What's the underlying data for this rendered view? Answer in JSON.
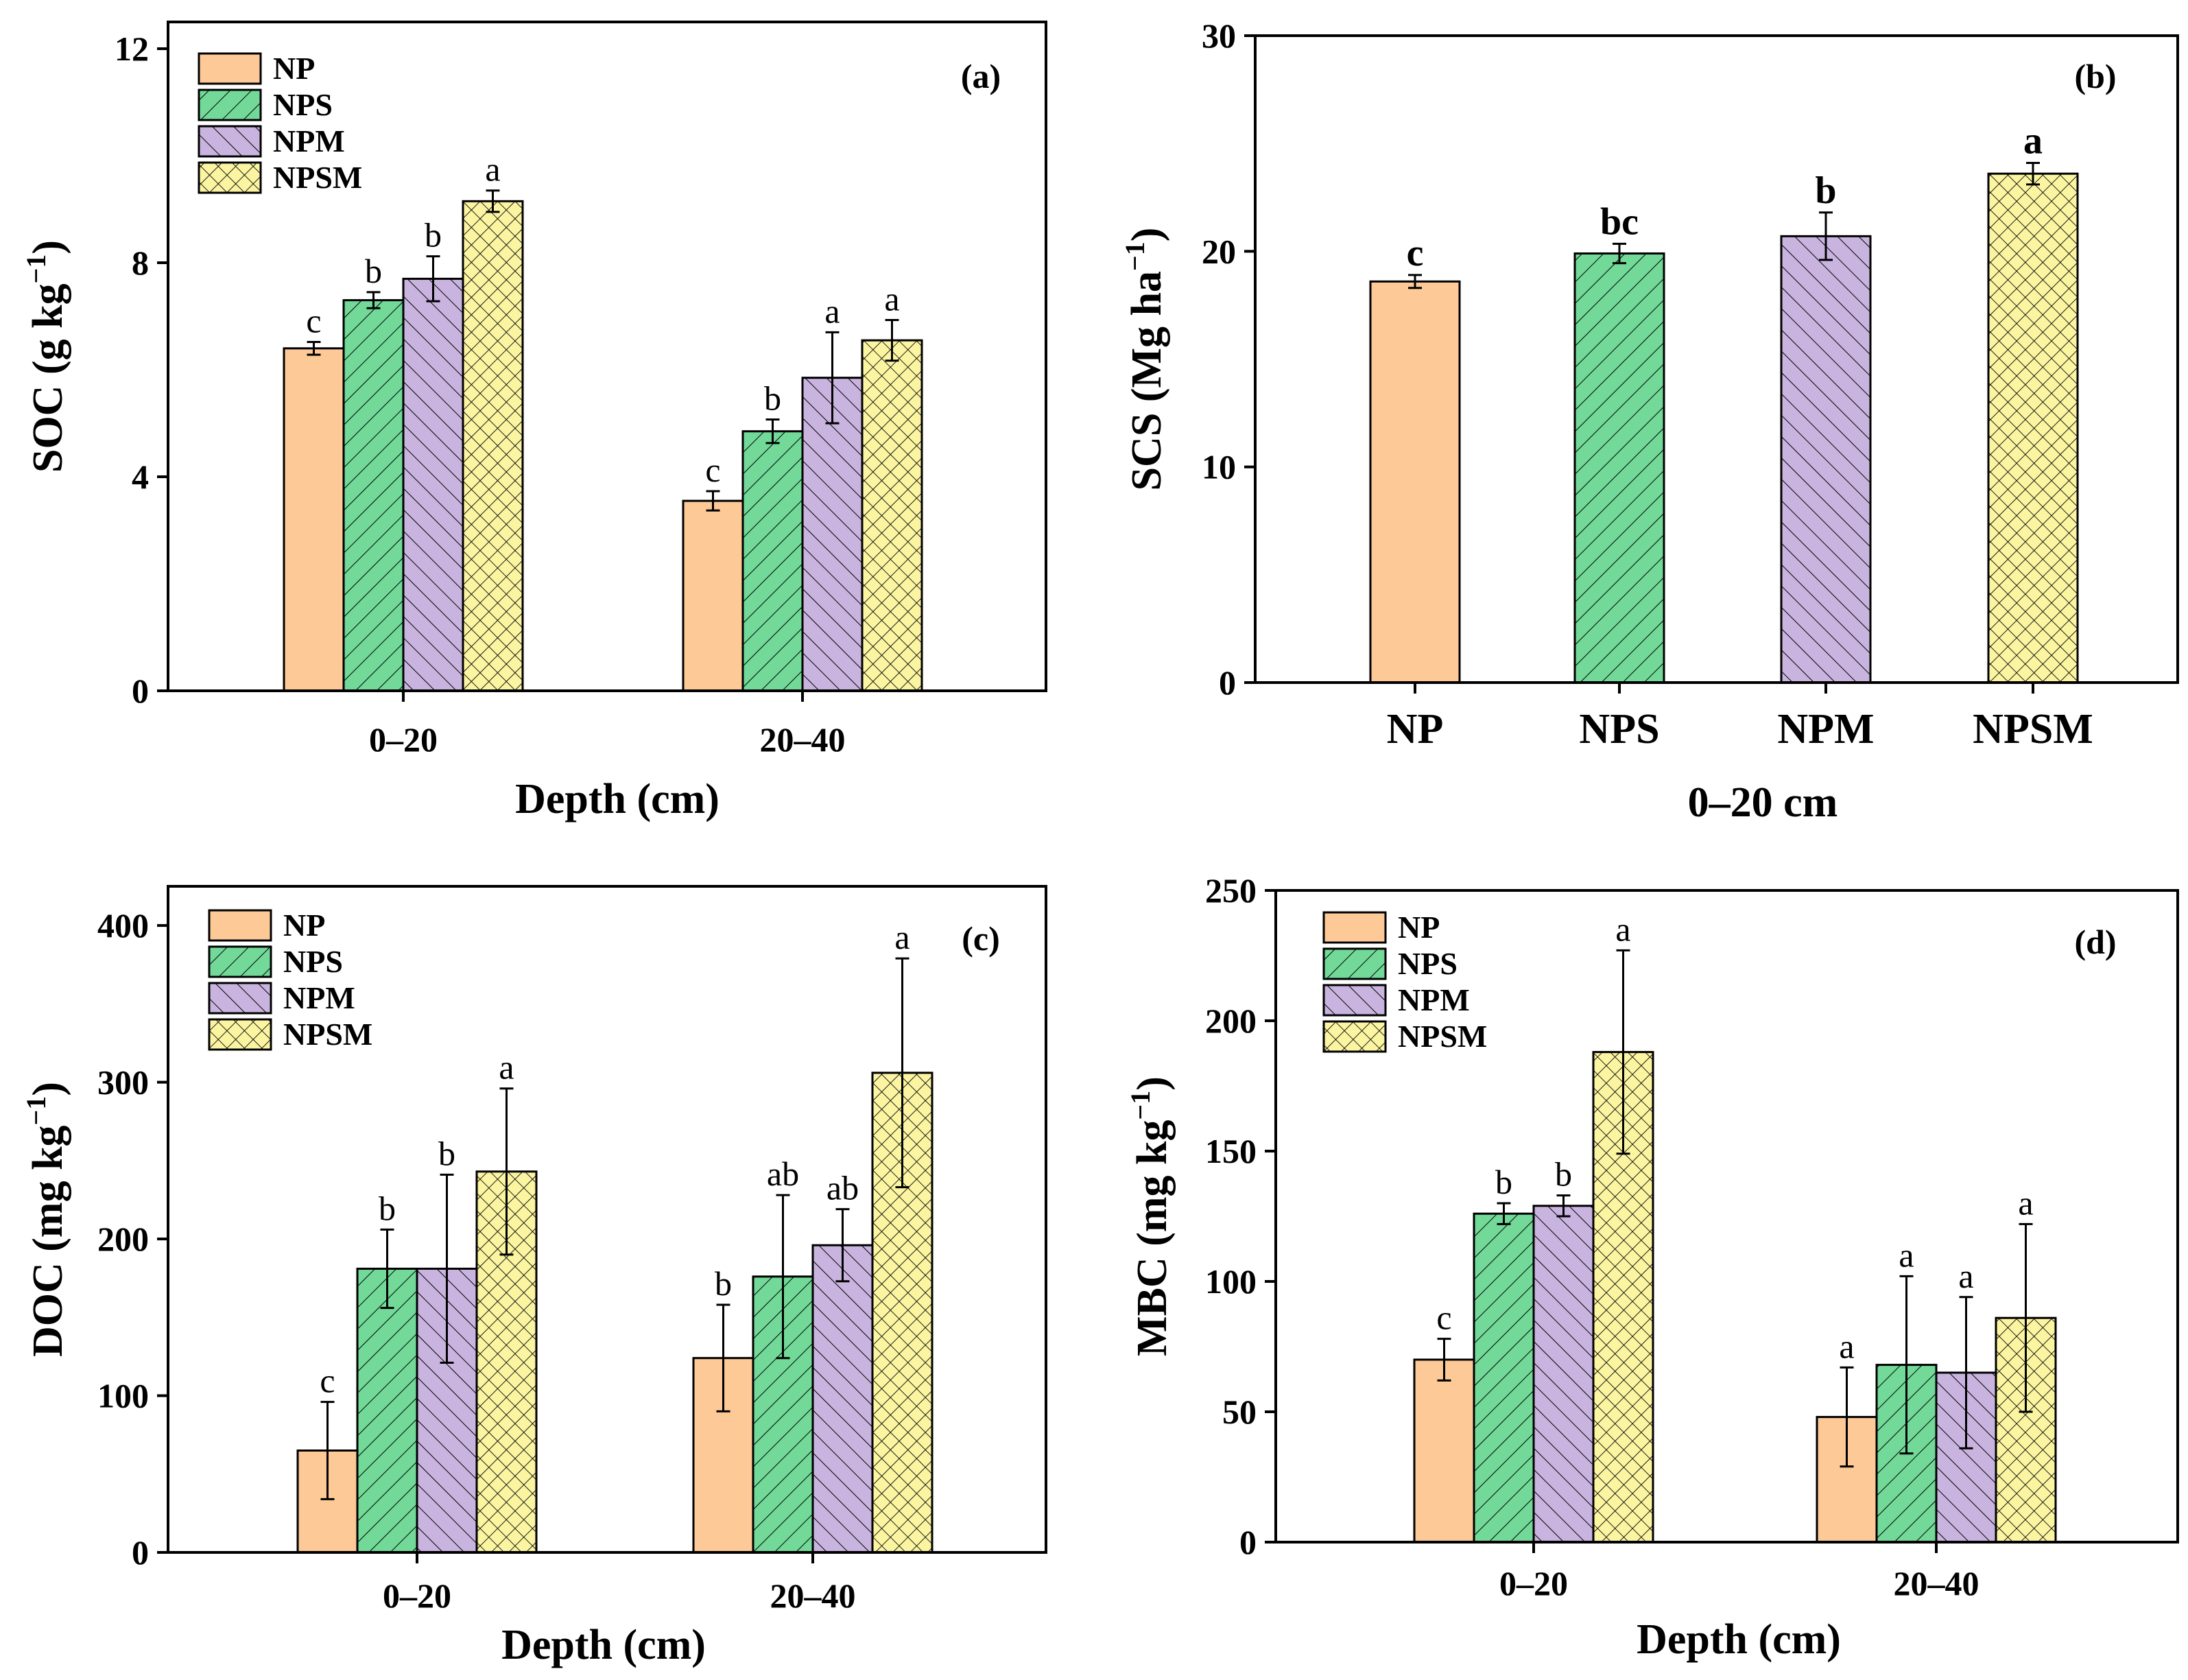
{
  "figure": {
    "panels": 4
  },
  "colors": {
    "NP": "#FDC997",
    "NPS": "#72D999",
    "NPM": "#C9B4DF",
    "NPSM": "#FBF5A2",
    "axis": "#000000"
  },
  "chart_data": [
    {
      "id": "a",
      "type": "bar",
      "panel_label": "(a)",
      "ylabel": "SOC (g kg",
      "ylabel_sup": "−1",
      "ylabel_tail": ")",
      "xlabel": "Depth (cm)",
      "categories": [
        "0–20",
        "20–40"
      ],
      "ylim": [
        0,
        12.5
      ],
      "yticks": [
        0,
        4,
        8,
        12
      ],
      "legend": [
        "NP",
        "NPS",
        "NPM",
        "NPSM"
      ],
      "legend_position": "top-left",
      "series": [
        {
          "name": "NP",
          "values": [
            6.4,
            3.55
          ],
          "errors": [
            0.12,
            0.18
          ],
          "letters": [
            "c",
            "c"
          ]
        },
        {
          "name": "NPS",
          "values": [
            7.3,
            4.85
          ],
          "errors": [
            0.15,
            0.22
          ],
          "letters": [
            "b",
            "b"
          ]
        },
        {
          "name": "NPM",
          "values": [
            7.7,
            5.85
          ],
          "errors": [
            0.42,
            0.85
          ],
          "letters": [
            "b",
            "a"
          ]
        },
        {
          "name": "NPSM",
          "values": [
            9.15,
            6.55
          ],
          "errors": [
            0.2,
            0.38
          ],
          "letters": [
            "a",
            "a"
          ]
        }
      ]
    },
    {
      "id": "b",
      "type": "bar",
      "panel_label": "(b)",
      "ylabel": "SCS (Mg ha",
      "ylabel_sup": "−1",
      "ylabel_tail": ")",
      "xlabel": "0–20 cm",
      "categories": [
        "NP",
        "NPS",
        "NPM",
        "NPSM"
      ],
      "ylim": [
        0,
        30
      ],
      "yticks": [
        0,
        10,
        20,
        30
      ],
      "values": [
        18.6,
        19.9,
        20.7,
        23.6
      ],
      "errors": [
        0.3,
        0.45,
        1.1,
        0.5
      ],
      "letters": [
        "c",
        "bc",
        "b",
        "a"
      ]
    },
    {
      "id": "c",
      "type": "bar",
      "panel_label": "(c)",
      "ylabel": "DOC (mg kg",
      "ylabel_sup": "−1",
      "ylabel_tail": ")",
      "xlabel": "Depth (cm)",
      "categories": [
        "0–20",
        "20–40"
      ],
      "ylim": [
        0,
        425
      ],
      "yticks": [
        0,
        100,
        200,
        300,
        400
      ],
      "legend": [
        "NP",
        "NPS",
        "NPM",
        "NPSM"
      ],
      "legend_position": "top-left",
      "series": [
        {
          "name": "NP",
          "values": [
            65,
            124
          ],
          "errors": [
            31,
            34
          ],
          "letters": [
            "c",
            "b"
          ]
        },
        {
          "name": "NPS",
          "values": [
            181,
            176
          ],
          "errors": [
            25,
            52
          ],
          "letters": [
            "b",
            "ab"
          ]
        },
        {
          "name": "NPM",
          "values": [
            181,
            196
          ],
          "errors": [
            60,
            23
          ],
          "letters": [
            "b",
            "ab"
          ]
        },
        {
          "name": "NPSM",
          "values": [
            243,
            306
          ],
          "errors": [
            53,
            73
          ],
          "letters": [
            "a",
            "a"
          ]
        }
      ]
    },
    {
      "id": "d",
      "type": "bar",
      "panel_label": "(d)",
      "ylabel": "MBC (mg kg",
      "ylabel_sup": "−1",
      "ylabel_tail": ")",
      "xlabel": "Depth (cm)",
      "categories": [
        "0–20",
        "20–40"
      ],
      "ylim": [
        0,
        250
      ],
      "yticks": [
        0,
        50,
        100,
        150,
        200,
        250
      ],
      "legend": [
        "NP",
        "NPS",
        "NPM",
        "NPSM"
      ],
      "legend_position": "top-left",
      "series": [
        {
          "name": "NP",
          "values": [
            70,
            48
          ],
          "errors": [
            8,
            19
          ],
          "letters": [
            "c",
            "a"
          ]
        },
        {
          "name": "NPS",
          "values": [
            126,
            68
          ],
          "errors": [
            4,
            34
          ],
          "letters": [
            "b",
            "a"
          ]
        },
        {
          "name": "NPM",
          "values": [
            129,
            65
          ],
          "errors": [
            4,
            29
          ],
          "letters": [
            "b",
            "a"
          ]
        },
        {
          "name": "NPSM",
          "values": [
            188,
            86
          ],
          "errors": [
            39,
            36
          ],
          "letters": [
            "a",
            "a"
          ]
        }
      ]
    }
  ]
}
